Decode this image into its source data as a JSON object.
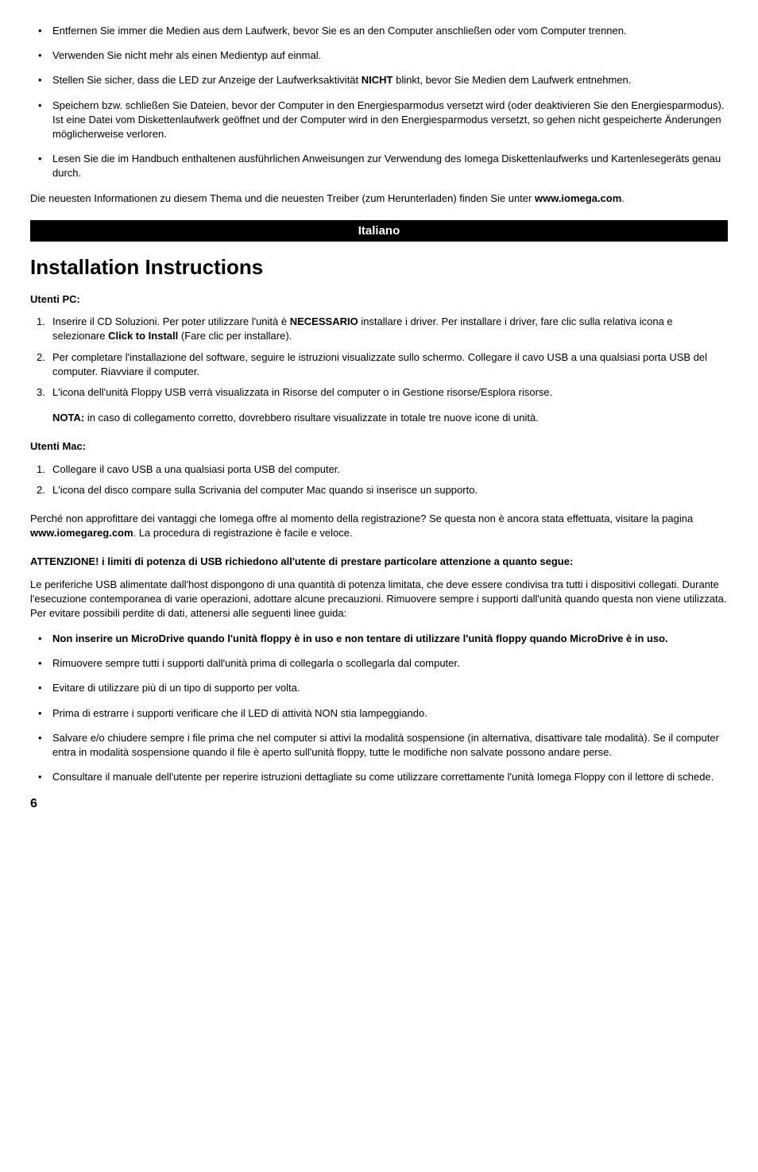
{
  "colors": {
    "text": "#000000",
    "background": "#ffffff",
    "bar_bg": "#000000",
    "bar_text": "#ffffff"
  },
  "typography": {
    "body_fontsize": 13,
    "heading_fontsize": 26,
    "bar_fontsize": 15,
    "pagenum_fontsize": 16
  },
  "de_bullets": [
    "Entfernen Sie immer die Medien aus dem Laufwerk, bevor Sie es an den Computer anschließen oder vom Computer trennen.",
    "Verwenden Sie nicht mehr als einen Medientyp auf einmal.",
    "Stellen Sie sicher, dass die LED zur Anzeige der Laufwerksaktivität <b>NICHT</b> blinkt, bevor Sie Medien dem Laufwerk entnehmen.",
    "Speichern bzw. schließen Sie Dateien, bevor der Computer in den Energiesparmodus versetzt wird (oder deaktivieren Sie den Energiesparmodus). Ist eine Datei vom Diskettenlaufwerk geöffnet und der Computer wird in den Energiesparmodus versetzt, so gehen nicht gespeicherte Änderungen möglicherweise verloren.",
    "Lesen Sie die im Handbuch enthaltenen ausführlichen Anweisungen zur Verwendung des Iomega Diskettenlaufwerks und Kartenlesegeräts genau durch."
  ],
  "de_footer": "Die neuesten Informationen zu diesem Thema und die neuesten Treiber (zum Herunterladen) finden Sie unter <b>www.iomega.com</b>.",
  "section_bar": "Italiano",
  "main_heading": "Installation Instructions",
  "utenti_pc_label": "Utenti PC:",
  "pc_steps": [
    "Inserire il CD Soluzioni. Per poter utilizzare l'unità è <b>NECESSARIO</b> installare i driver. Per installare i driver, fare clic sulla relativa icona e selezionare <b>Click to Install</b> (Fare clic per installare).",
    "Per completare l'installazione del software, seguire le istruzioni visualizzate sullo schermo. Collegare il cavo USB a una qualsiasi porta USB del computer.  Riavviare il computer.",
    "L'icona dell'unità Floppy USB verrà visualizzata in Risorse del computer o in Gestione risorse/Esplora risorse."
  ],
  "pc_note": "<b>NOTA:</b> in caso di collegamento corretto, dovrebbero risultare visualizzate in totale tre nuove icone di unità.",
  "utenti_mac_label": "Utenti Mac:",
  "mac_steps": [
    "Collegare il cavo USB a una qualsiasi porta USB del computer.",
    "L'icona del disco compare sulla Scrivania del computer Mac quando si inserisce un supporto."
  ],
  "reg_para": "Perché non approfittare dei vantaggi che Iomega offre al momento della registrazione? Se questa non è ancora stata effettuata, visitare la pagina <b>www.iomegareg.com</b>. La procedura di registrazione è facile e veloce.",
  "attention_heading": "ATTENZIONE! i limiti di potenza di USB richiedono all'utente di prestare particolare attenzione a quanto segue:",
  "attention_para": "Le periferiche USB alimentate dall'host dispongono di una quantità di potenza limitata, che deve essere condivisa tra tutti i dispositivi collegati. Durante l'esecuzione contemporanea di varie operazioni, adottare alcune precauzioni. Rimuovere sempre i supporti dall'unità quando questa non viene utilizzata. Per evitare possibili perdite di dati, attenersi alle seguenti linee guida:",
  "it_bullets": [
    "<b>Non inserire un MicroDrive quando l'unità floppy è in uso e non tentare di utilizzare l'unità floppy quando MicroDrive è in uso.</b>",
    "Rimuovere sempre tutti i supporti dall'unità prima di collegarla o scollegarla dal computer.",
    "Evitare di utilizzare più di un tipo di supporto per volta.",
    "Prima di estrarre i supporti verificare che il LED di attività NON stia lampeggiando.",
    "Salvare e/o chiudere sempre i file prima che nel computer si attivi la modalità sospensione (in alternativa, disattivare tale modalità). Se il computer entra in modalità sospensione quando il file è aperto sull'unità floppy, tutte le modifiche non salvate possono andare perse.",
    "Consultare il manuale dell'utente per reperire istruzioni dettagliate su come utilizzare correttamente l'unità Iomega Floppy con il lettore di schede."
  ],
  "page_number": "6"
}
